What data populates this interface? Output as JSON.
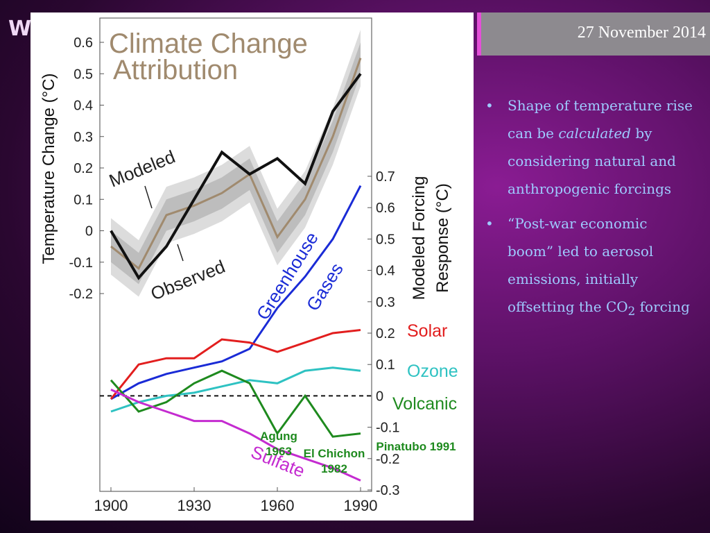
{
  "slide": {
    "title_fragment": "W",
    "date": "27 November 2014",
    "bullets": [
      {
        "pre": "Shape of temperature rise can be ",
        "em": "calculated",
        "post": " by considering natural and anthropogenic forcings"
      },
      {
        "text": "“Post-war economic boom” led to aerosol emissions, initially offsetting the CO",
        "sub": "2",
        "post": " forcing"
      }
    ]
  },
  "chart_data": {
    "type": "line",
    "title": "Climate Change Attribution",
    "x": [
      1900,
      1910,
      1920,
      1930,
      1940,
      1950,
      1960,
      1970,
      1980,
      1990
    ],
    "xticks": [
      "1900",
      "1930",
      "1960",
      "1990"
    ],
    "xlim": [
      1896,
      1994
    ],
    "top_panel": {
      "ylabel": "Temperature Change (°C)",
      "yticks": [
        "0.6",
        "0.5",
        "0.4",
        "0.3",
        "0.2",
        "0.1",
        "0",
        "-0.1",
        "-0.2"
      ],
      "ylim": [
        -0.25,
        0.65
      ],
      "series": [
        {
          "name": "Modeled",
          "color": "#a08a6e",
          "values": [
            -0.05,
            -0.12,
            0.05,
            0.08,
            0.12,
            0.18,
            -0.02,
            0.1,
            0.3,
            0.55
          ]
        },
        {
          "name": "Observed",
          "color": "#111111",
          "values": [
            0.0,
            -0.15,
            -0.05,
            0.1,
            0.25,
            0.18,
            0.23,
            0.15,
            0.38,
            0.5
          ]
        }
      ]
    },
    "bottom_panel": {
      "ylabel": "Modeled Forcing Response (°C)",
      "yticks": [
        "0.7",
        "0.6",
        "0.5",
        "0.4",
        "0.3",
        "0.2",
        "0.1",
        "0",
        "-0.1",
        "-0.2",
        "-0.3"
      ],
      "ylim": [
        -0.3,
        0.7
      ],
      "series": [
        {
          "name": "Greenhouse Gases",
          "color": "#1a2bd6",
          "values": [
            -0.01,
            0.04,
            0.07,
            0.09,
            0.11,
            0.15,
            0.28,
            0.38,
            0.5,
            0.67
          ]
        },
        {
          "name": "Solar",
          "color": "#e21e1e",
          "values": [
            -0.01,
            0.1,
            0.12,
            0.12,
            0.18,
            0.17,
            0.14,
            0.17,
            0.2,
            0.21
          ]
        },
        {
          "name": "Ozone",
          "color": "#2ec2c2",
          "values": [
            -0.05,
            -0.02,
            0.0,
            0.01,
            0.03,
            0.05,
            0.04,
            0.08,
            0.09,
            0.08
          ]
        },
        {
          "name": "Volcanic",
          "color": "#1e8a1e",
          "values": [
            0.05,
            -0.05,
            -0.02,
            0.04,
            0.08,
            0.04,
            -0.12,
            0.0,
            -0.13,
            -0.12
          ]
        },
        {
          "name": "Sulfate",
          "color": "#c42bd0",
          "values": [
            0.02,
            -0.02,
            -0.05,
            -0.08,
            -0.08,
            -0.12,
            -0.17,
            -0.2,
            -0.23,
            -0.27
          ]
        }
      ],
      "annotations": [
        {
          "text": "Agung\n1963",
          "color": "#1e8a1e"
        },
        {
          "text": "El Chichon\n1982",
          "color": "#1e8a1e"
        },
        {
          "text": "Pinatubo 1991",
          "color": "#1e8a1e"
        }
      ]
    },
    "arrow_labels": [
      "Modeled",
      "Observed"
    ]
  }
}
